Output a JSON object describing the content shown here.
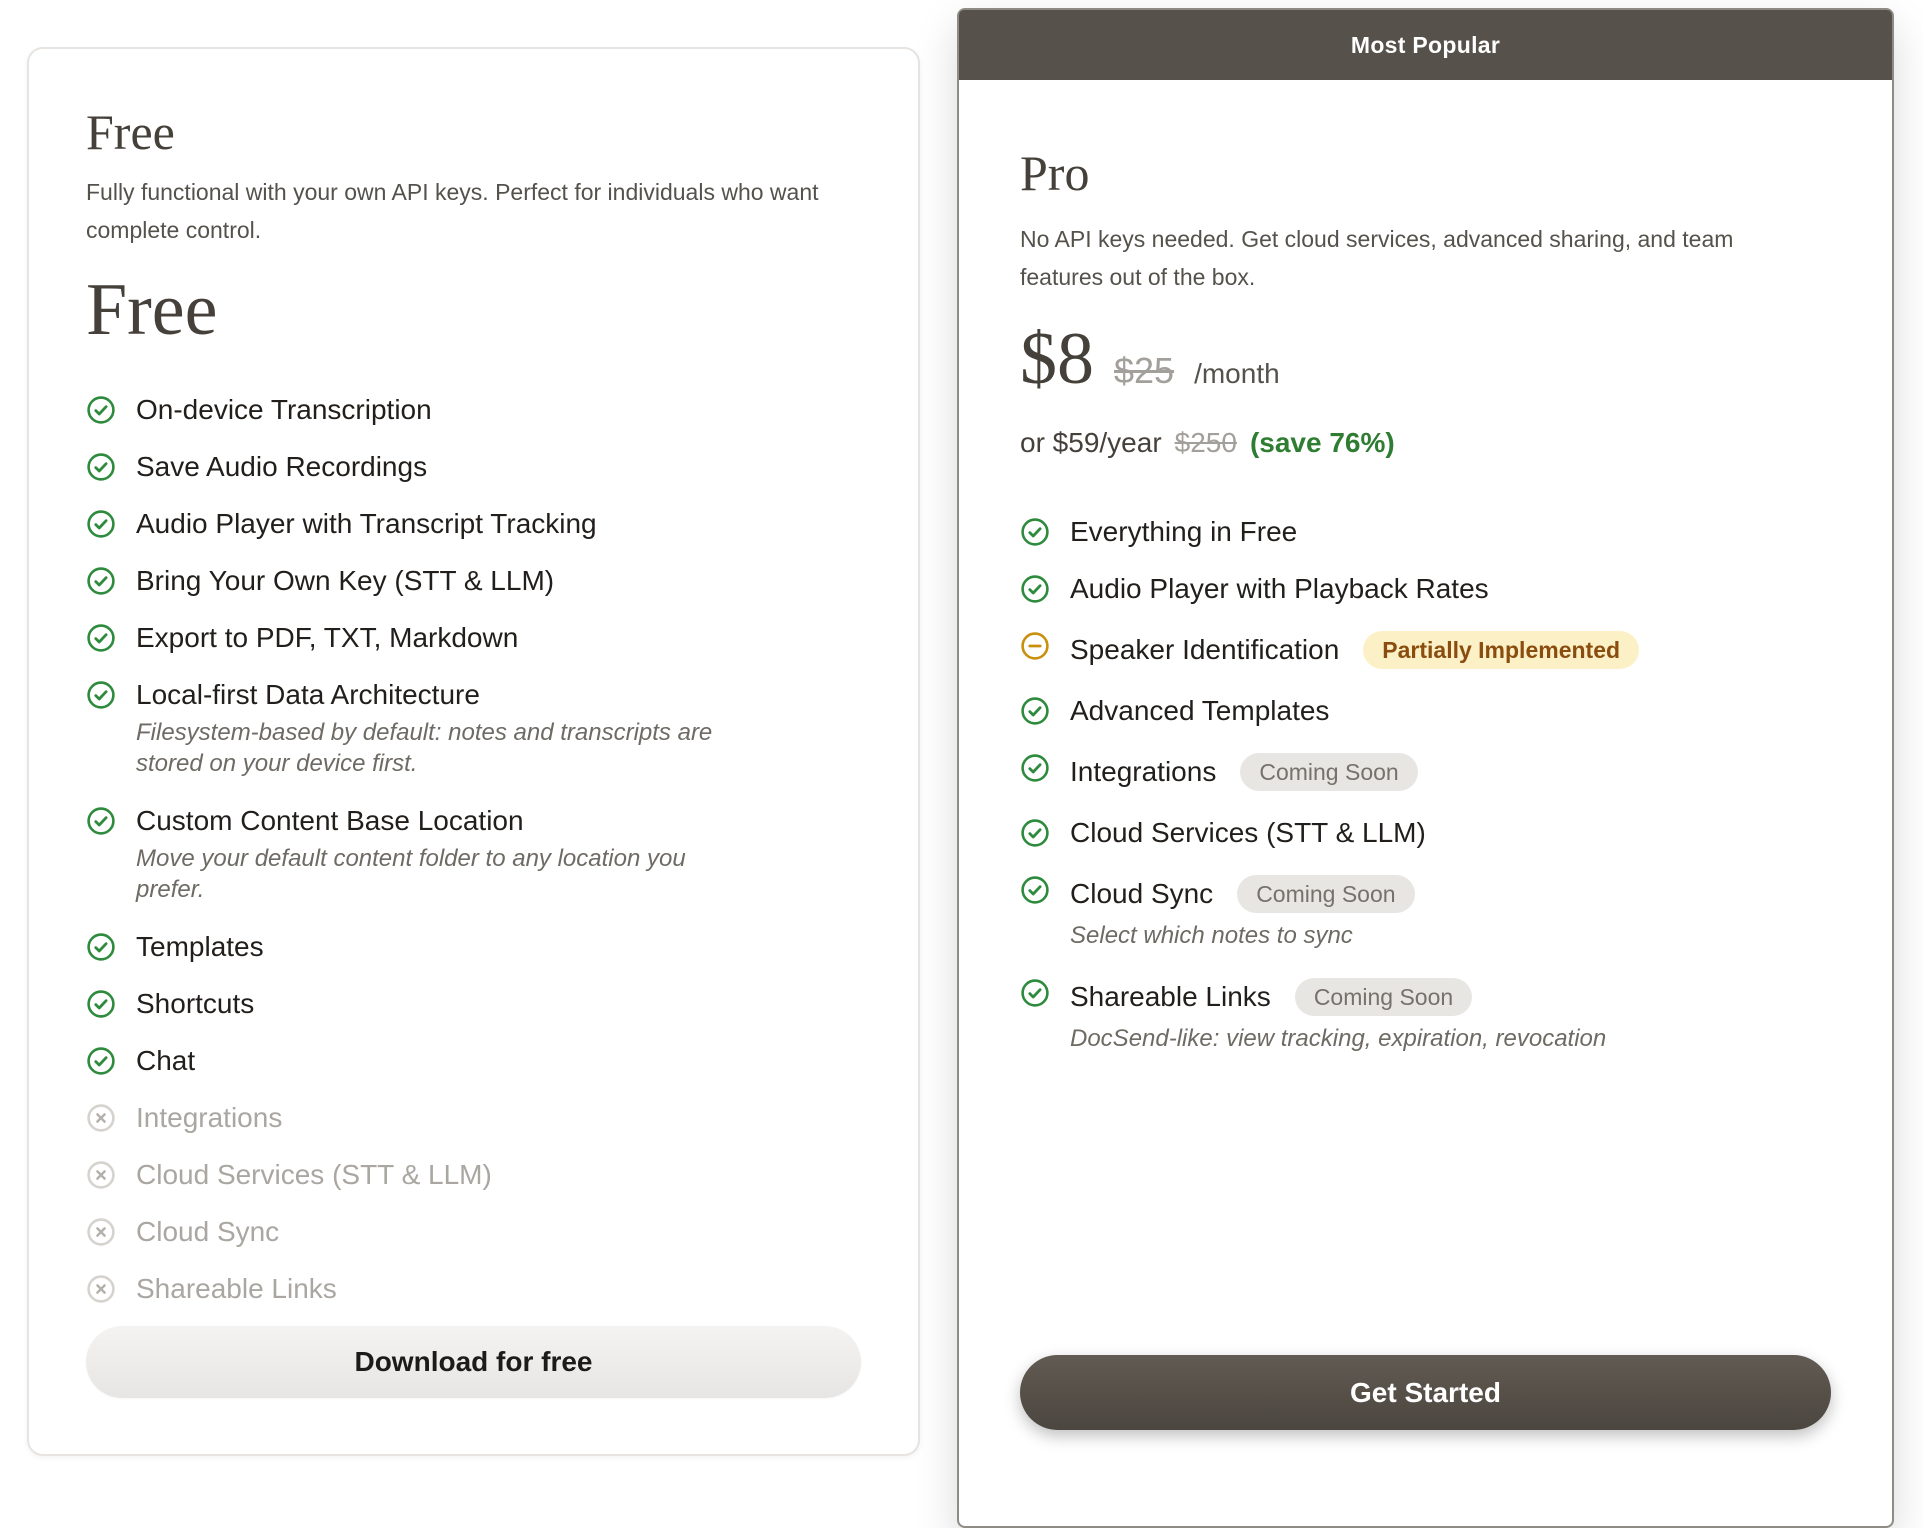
{
  "colors": {
    "ribbon_bg": "#56524b",
    "pro_card_border": "#8f8b85",
    "check_green": "#2e8b3d",
    "minus_amber": "#c8900d",
    "save_green": "#2e7d32",
    "badge_partial_bg": "#fcf1c6",
    "badge_partial_fg": "#8a4d0f",
    "badge_soon_bg": "#e8e6e3",
    "badge_soon_fg": "#76716b"
  },
  "free": {
    "title": "Free",
    "description": "Fully functional with your own API keys. Perfect for individuals who want complete control.",
    "price": "Free",
    "cta": "Download for free",
    "features": [
      {
        "label": "On-device Transcription",
        "icon": "check"
      },
      {
        "label": "Save Audio Recordings",
        "icon": "check"
      },
      {
        "label": "Audio Player with Transcript Tracking",
        "icon": "check"
      },
      {
        "label": "Bring Your Own Key (STT & LLM)",
        "icon": "check"
      },
      {
        "label": "Export to PDF, TXT, Markdown",
        "icon": "check"
      },
      {
        "label": "Local-first Data Architecture",
        "icon": "check",
        "subtext": "Filesystem-based by default: notes and transcripts are stored on your device first."
      },
      {
        "label": "Custom Content Base Location",
        "icon": "check",
        "subtext": "Move your default content folder to any location you prefer."
      },
      {
        "label": "Templates",
        "icon": "check"
      },
      {
        "label": "Shortcuts",
        "icon": "check"
      },
      {
        "label": "Chat",
        "icon": "check"
      },
      {
        "label": "Integrations",
        "icon": "cross"
      },
      {
        "label": "Cloud Services (STT & LLM)",
        "icon": "cross"
      },
      {
        "label": "Cloud Sync",
        "icon": "cross"
      },
      {
        "label": "Shareable Links",
        "icon": "cross"
      }
    ]
  },
  "pro": {
    "ribbon": "Most Popular",
    "title": "Pro",
    "description": "No API keys needed. Get cloud services, advanced sharing, and team features out of the box.",
    "price": {
      "current": "$8",
      "original": "$25",
      "period": "/month"
    },
    "yearly": {
      "prefix": "or $59/year",
      "original": "$250",
      "savings": "(save 76%)"
    },
    "cta": "Get Started",
    "features": [
      {
        "label": "Everything in Free",
        "icon": "check"
      },
      {
        "label": "Audio Player with Playback Rates",
        "icon": "check"
      },
      {
        "label": "Speaker Identification",
        "icon": "minus",
        "badge": {
          "text": "Partially Implemented",
          "type": "partial"
        }
      },
      {
        "label": "Advanced Templates",
        "icon": "check"
      },
      {
        "label": "Integrations",
        "icon": "check",
        "badge": {
          "text": "Coming Soon",
          "type": "soon"
        }
      },
      {
        "label": "Cloud Services (STT & LLM)",
        "icon": "check"
      },
      {
        "label": "Cloud Sync",
        "icon": "check",
        "badge": {
          "text": "Coming Soon",
          "type": "soon"
        },
        "subtext": "Select which notes to sync"
      },
      {
        "label": "Shareable Links",
        "icon": "check",
        "badge": {
          "text": "Coming Soon",
          "type": "soon"
        },
        "subtext": "DocSend-like: view tracking, expiration, revocation"
      }
    ]
  }
}
